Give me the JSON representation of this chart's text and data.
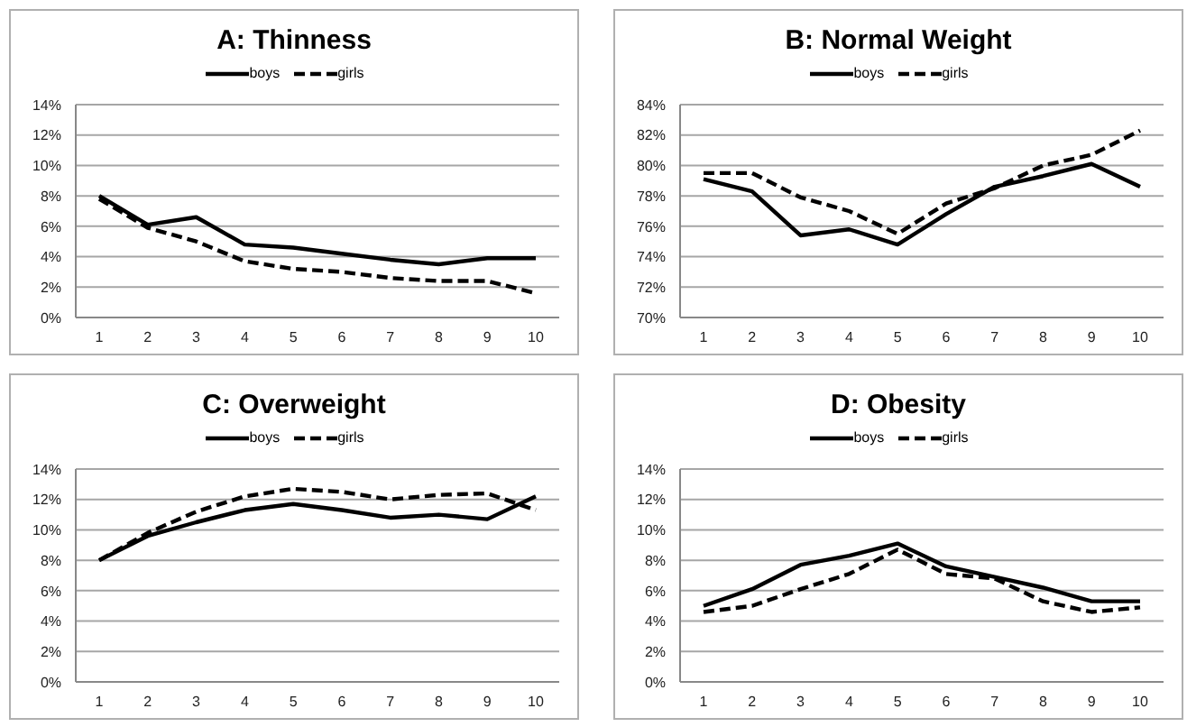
{
  "chart_data": [
    {
      "type": "line",
      "title": "A: Thinness",
      "categories": [
        "1",
        "2",
        "3",
        "4",
        "5",
        "6",
        "7",
        "8",
        "9",
        "10"
      ],
      "series": [
        {
          "name": "boys",
          "color": "#000000",
          "line_style": "solid",
          "values": [
            8.0,
            6.1,
            6.6,
            4.8,
            4.6,
            4.2,
            3.8,
            3.5,
            3.9,
            3.9
          ]
        },
        {
          "name": "girls",
          "color": "#000000",
          "line_style": "dashed",
          "values": [
            7.8,
            5.9,
            5.0,
            3.7,
            3.2,
            3.0,
            2.6,
            2.4,
            2.4,
            1.6
          ]
        }
      ],
      "ylim": [
        0,
        14
      ],
      "yticks": [
        {
          "value": 0,
          "label": "0%"
        },
        {
          "value": 2,
          "label": "2%"
        },
        {
          "value": 4,
          "label": "4%"
        },
        {
          "value": 6,
          "label": "6%"
        },
        {
          "value": 8,
          "label": "8%"
        },
        {
          "value": 10,
          "label": "10%"
        },
        {
          "value": 12,
          "label": "12%"
        },
        {
          "value": 14,
          "label": "14%"
        }
      ],
      "grid": "y",
      "legend": "top"
    },
    {
      "type": "line",
      "title": "B: Normal Weight",
      "categories": [
        "1",
        "2",
        "3",
        "4",
        "5",
        "6",
        "7",
        "8",
        "9",
        "10"
      ],
      "series": [
        {
          "name": "boys",
          "color": "#000000",
          "line_style": "solid",
          "values": [
            79.1,
            78.3,
            75.4,
            75.8,
            74.8,
            76.8,
            78.6,
            79.3,
            80.1,
            78.6
          ]
        },
        {
          "name": "girls",
          "color": "#000000",
          "line_style": "dashed",
          "values": [
            79.5,
            79.5,
            77.9,
            77.0,
            75.5,
            77.5,
            78.5,
            80.0,
            80.7,
            82.3
          ]
        }
      ],
      "ylim": [
        70,
        84
      ],
      "yticks": [
        {
          "value": 70,
          "label": "70%"
        },
        {
          "value": 72,
          "label": "72%"
        },
        {
          "value": 74,
          "label": "74%"
        },
        {
          "value": 76,
          "label": "76%"
        },
        {
          "value": 78,
          "label": "78%"
        },
        {
          "value": 80,
          "label": "80%"
        },
        {
          "value": 82,
          "label": "82%"
        },
        {
          "value": 84,
          "label": "84%"
        }
      ],
      "grid": "y",
      "legend": "top"
    },
    {
      "type": "line",
      "title": "C: Overweight",
      "categories": [
        "1",
        "2",
        "3",
        "4",
        "5",
        "6",
        "7",
        "8",
        "9",
        "10"
      ],
      "series": [
        {
          "name": "boys",
          "color": "#000000",
          "line_style": "solid",
          "values": [
            8.0,
            9.6,
            10.5,
            11.3,
            11.7,
            11.3,
            10.8,
            11.0,
            10.7,
            12.2
          ]
        },
        {
          "name": "girls",
          "color": "#000000",
          "line_style": "dashed",
          "values": [
            8.0,
            9.8,
            11.2,
            12.2,
            12.7,
            12.5,
            12.0,
            12.3,
            12.4,
            11.3
          ]
        }
      ],
      "ylim": [
        0,
        14
      ],
      "yticks": [
        {
          "value": 0,
          "label": "0%"
        },
        {
          "value": 2,
          "label": "2%"
        },
        {
          "value": 4,
          "label": "4%"
        },
        {
          "value": 6,
          "label": "6%"
        },
        {
          "value": 8,
          "label": "8%"
        },
        {
          "value": 10,
          "label": "10%"
        },
        {
          "value": 12,
          "label": "12%"
        },
        {
          "value": 14,
          "label": "14%"
        }
      ],
      "grid": "y",
      "legend": "top"
    },
    {
      "type": "line",
      "title": "D: Obesity",
      "categories": [
        "1",
        "2",
        "3",
        "4",
        "5",
        "6",
        "7",
        "8",
        "9",
        "10"
      ],
      "series": [
        {
          "name": "boys",
          "color": "#000000",
          "line_style": "solid",
          "values": [
            5.0,
            6.1,
            7.7,
            8.3,
            9.1,
            7.6,
            6.9,
            6.2,
            5.3,
            5.3
          ]
        },
        {
          "name": "girls",
          "color": "#000000",
          "line_style": "dashed",
          "values": [
            4.6,
            5.0,
            6.1,
            7.1,
            8.7,
            7.1,
            6.8,
            5.3,
            4.6,
            4.9
          ]
        }
      ],
      "ylim": [
        0,
        14
      ],
      "yticks": [
        {
          "value": 0,
          "label": "0%"
        },
        {
          "value": 2,
          "label": "2%"
        },
        {
          "value": 4,
          "label": "4%"
        },
        {
          "value": 6,
          "label": "6%"
        },
        {
          "value": 8,
          "label": "8%"
        },
        {
          "value": 10,
          "label": "10%"
        },
        {
          "value": 12,
          "label": "12%"
        },
        {
          "value": 14,
          "label": "14%"
        }
      ],
      "grid": "y",
      "legend": "top"
    }
  ]
}
